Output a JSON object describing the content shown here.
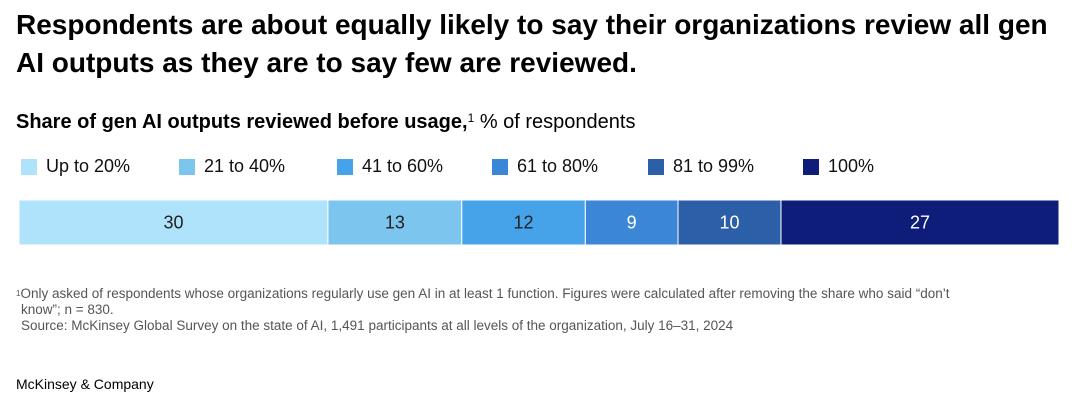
{
  "headline": "Respondents are about equally likely to say their organizations review all gen AI outputs as they are to say few are reviewed.",
  "subtitle": {
    "bold": "Share of gen AI outputs reviewed before usage,",
    "sup": "1",
    "rest": " % of respondents"
  },
  "chart_data": {
    "type": "bar",
    "orientation": "horizontal-stacked",
    "title": "Share of gen AI outputs reviewed before usage",
    "unit": "% of respondents",
    "categories": [
      "Up to 20%",
      "21 to 40%",
      "41 to 60%",
      "61 to 80%",
      "81 to 99%",
      "100%"
    ],
    "values": [
      30,
      13,
      12,
      9,
      10,
      27
    ],
    "colors": [
      "#aee3fb",
      "#7cc5ef",
      "#47a3e9",
      "#3b86d6",
      "#2b5fa8",
      "#0f1d7a"
    ],
    "label_colors": [
      "#222222",
      "#222222",
      "#222222",
      "#ffffff",
      "#ffffff",
      "#ffffff"
    ],
    "legend_position": "top-left"
  },
  "footnote": {
    "marker": "1",
    "line1": "Only asked of respondents whose organizations regularly use gen AI in at least 1 function. Figures were calculated after removing the share who said “don’t",
    "line2": "know”; n = 830.",
    "source": "Source: McKinsey Global Survey on the state of AI, 1,491 participants at all levels of the organization, July 16–31, 2024"
  },
  "brand": "McKinsey & Company"
}
